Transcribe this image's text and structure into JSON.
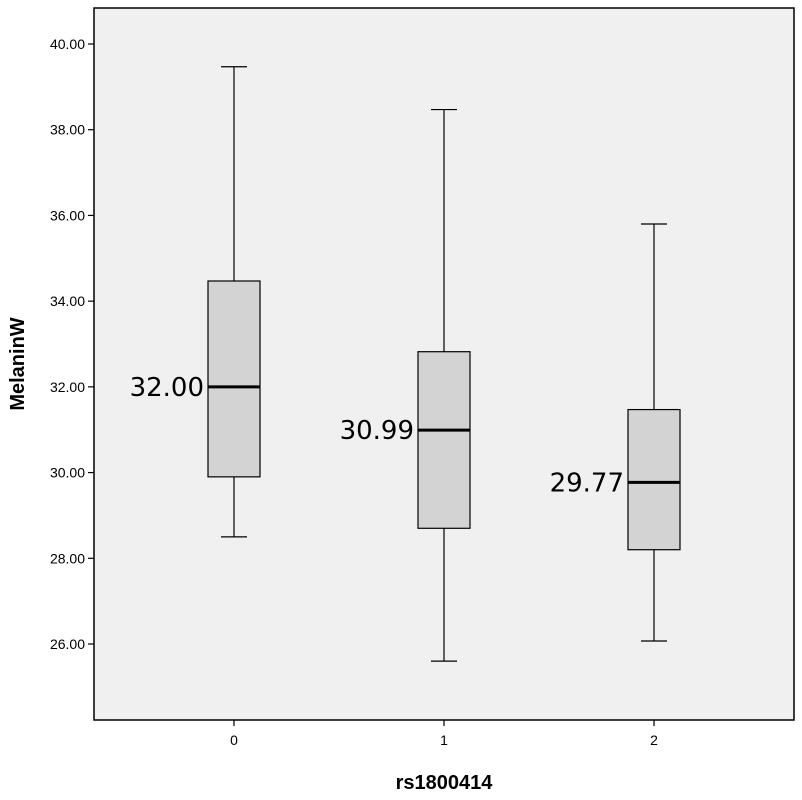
{
  "chart_data": {
    "type": "boxplot",
    "xlabel": "rs1800414",
    "ylabel": "MelaninW",
    "ylim": [
      24.5,
      40.8
    ],
    "y_ticks": [
      "26.00",
      "28.00",
      "30.00",
      "32.00",
      "34.00",
      "36.00",
      "38.00",
      "40.00"
    ],
    "y_tick_values": [
      26,
      28,
      30,
      32,
      34,
      36,
      38,
      40
    ],
    "categories": [
      "0",
      "1",
      "2"
    ],
    "boxes": [
      {
        "category": "0",
        "min": 28.5,
        "q1": 29.9,
        "median": 32.0,
        "q3": 34.47,
        "max": 39.47,
        "median_label": "32.00"
      },
      {
        "category": "1",
        "min": 25.6,
        "q1": 28.7,
        "median": 30.99,
        "q3": 32.82,
        "max": 38.47,
        "median_label": "30.99"
      },
      {
        "category": "2",
        "min": 26.07,
        "q1": 28.2,
        "median": 29.77,
        "q3": 31.47,
        "max": 35.8,
        "median_label": "29.77"
      }
    ],
    "box_fill": "#d3d3d3",
    "plot_background": "#f0f0f0",
    "grid": false,
    "legend": "none"
  }
}
